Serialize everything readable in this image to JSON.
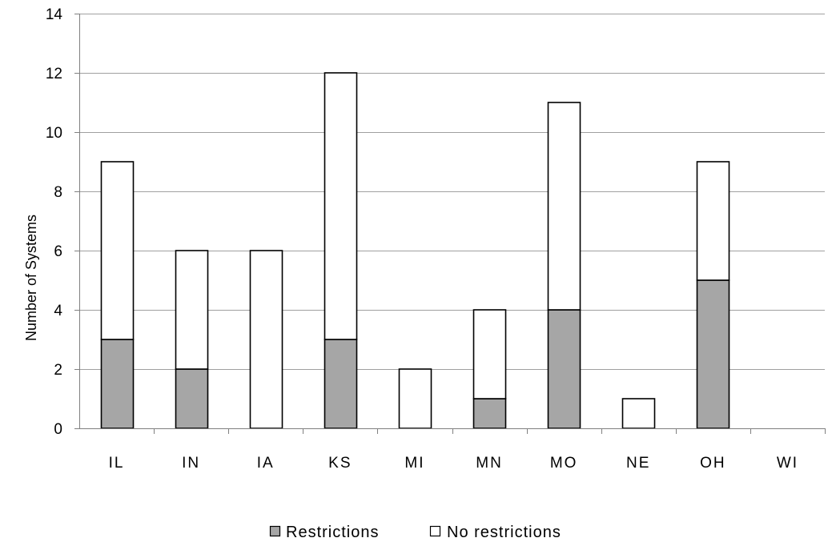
{
  "chart_data": {
    "type": "bar",
    "stacked": true,
    "title": "",
    "xlabel": "",
    "ylabel": "Number of Systems",
    "ylim": [
      0,
      14
    ],
    "yticks": [
      0,
      2,
      4,
      6,
      8,
      10,
      12,
      14
    ],
    "categories": [
      "IL",
      "IN",
      "IA",
      "KS",
      "MI",
      "MN",
      "MO",
      "NE",
      "OH",
      "WI"
    ],
    "series": [
      {
        "name": "Restrictions",
        "values": [
          3,
          2,
          0,
          3,
          0,
          1,
          4,
          0,
          5,
          0
        ],
        "color": "#a6a6a6"
      },
      {
        "name": "No restrictions",
        "values": [
          6,
          4,
          6,
          9,
          2,
          3,
          7,
          1,
          4,
          0
        ],
        "color": "#ffffff"
      }
    ],
    "grid": true,
    "legend_position": "bottom"
  }
}
